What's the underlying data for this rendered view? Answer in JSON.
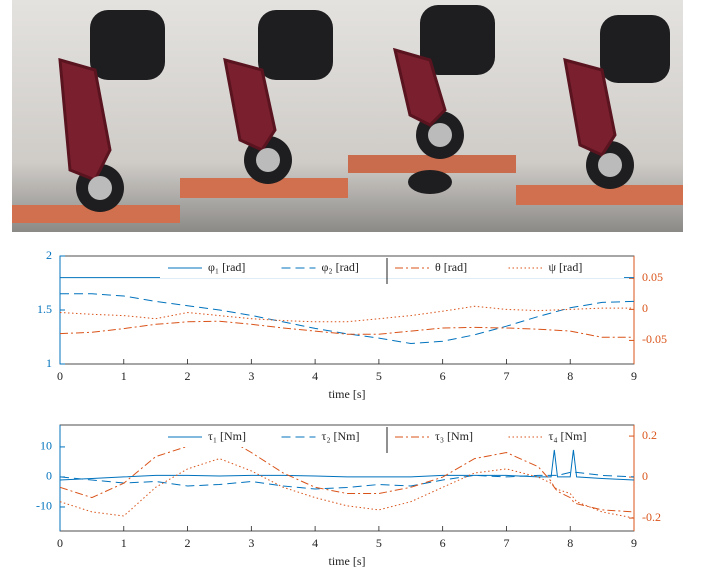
{
  "chart_data": [
    {
      "type": "line",
      "xlabel": "time [s]",
      "legend": "top",
      "x": [
        0,
        0.5,
        1,
        1.5,
        2,
        2.5,
        3,
        3.5,
        4,
        4.5,
        5,
        5.5,
        6,
        6.5,
        7,
        7.5,
        8,
        8.5,
        9
      ],
      "xlim": [
        0,
        9
      ],
      "xticks": [
        0,
        1,
        2,
        3,
        4,
        5,
        6,
        7,
        8,
        9
      ],
      "ylim": [
        1,
        2
      ],
      "yticks": [
        1,
        1.5,
        2
      ],
      "y2lim": [
        -0.088,
        0.086
      ],
      "y2ticks": [
        -0.05,
        0,
        0.05
      ],
      "series": [
        {
          "name": "φ₁ [rad]",
          "color": "#0072BD",
          "line_style": "solid",
          "values": [
            1.8,
            1.8,
            1.8,
            1.8,
            1.8,
            1.8,
            1.8,
            1.8,
            1.8,
            1.8,
            1.8,
            1.8,
            1.8,
            1.8,
            1.8,
            1.8,
            1.8,
            1.8,
            1.8
          ]
        },
        {
          "name": "φ₂ [rad]",
          "color": "#0072BD",
          "line_style": "dashed",
          "values": [
            1.65,
            1.65,
            1.63,
            1.58,
            1.54,
            1.5,
            1.45,
            1.39,
            1.33,
            1.28,
            1.24,
            1.19,
            1.21,
            1.27,
            1.35,
            1.44,
            1.52,
            1.57,
            1.58
          ]
        },
        {
          "name": "θ [rad]",
          "color": "#D95319",
          "line_style": "dashdot",
          "axis": "y2",
          "values": [
            -0.039,
            -0.037,
            -0.031,
            -0.024,
            -0.02,
            -0.019,
            -0.024,
            -0.03,
            -0.035,
            -0.04,
            -0.04,
            -0.035,
            -0.03,
            -0.029,
            -0.03,
            -0.032,
            -0.035,
            -0.045,
            -0.045
          ]
        },
        {
          "name": "ψ [rad]",
          "color": "#D95319",
          "line_style": "dotted",
          "axis": "y2",
          "values": [
            -0.005,
            -0.008,
            -0.01,
            -0.015,
            -0.005,
            -0.01,
            -0.015,
            -0.018,
            -0.02,
            -0.02,
            -0.015,
            -0.01,
            -0.003,
            0.005,
            0.0,
            -0.002,
            0.0,
            0.002,
            0.002
          ]
        }
      ]
    },
    {
      "type": "line",
      "xlabel": "time [s]",
      "legend": "top",
      "x": [
        0,
        0.5,
        1,
        1.5,
        2,
        2.5,
        3,
        3.5,
        4,
        4.5,
        5,
        5.5,
        6,
        6.5,
        7,
        7.5,
        7.7,
        7.75,
        7.8,
        8,
        8.05,
        8.1,
        8.5,
        9
      ],
      "xlim": [
        0,
        9
      ],
      "xticks": [
        0,
        1,
        2,
        3,
        4,
        5,
        6,
        7,
        8,
        9
      ],
      "ylim": [
        -18,
        17.3
      ],
      "yticks": [
        -10,
        0,
        10
      ],
      "y2lim": [
        -0.263,
        0.254
      ],
      "y2ticks": [
        -0.2,
        0,
        0.2
      ],
      "series": [
        {
          "name": "τ₁ [Nm]",
          "color": "#0072BD",
          "line_style": "solid",
          "values": [
            -1,
            -0.5,
            0,
            0.5,
            0.5,
            0.3,
            0.5,
            0.5,
            0.3,
            0,
            0,
            0,
            0.5,
            0.5,
            0.5,
            0,
            0,
            9,
            0,
            0,
            9,
            0,
            -0.5,
            -1
          ]
        },
        {
          "name": "τ₂ [Nm]",
          "color": "#0072BD",
          "line_style": "dashed",
          "values": [
            0,
            -1,
            -2,
            -1.5,
            -3,
            -2.5,
            -1.5,
            -3,
            -4,
            -3.5,
            -2.5,
            -3,
            -1,
            0.5,
            0,
            0.5,
            0.5,
            0.5,
            0.5,
            1.5,
            1.5,
            1.5,
            0.5,
            0
          ]
        },
        {
          "name": "τ₃ [Nm]",
          "color": "#D95319",
          "line_style": "dashdot",
          "axis": "y2",
          "values": [
            -0.05,
            -0.1,
            -0.03,
            0.1,
            0.15,
            0.21,
            0.12,
            0.02,
            -0.05,
            -0.08,
            -0.08,
            -0.05,
            0.0,
            0.09,
            0.12,
            0.05,
            -0.02,
            -0.05,
            -0.07,
            -0.1,
            -0.12,
            -0.13,
            -0.16,
            -0.17
          ]
        },
        {
          "name": "τ₄ [Nm]",
          "color": "#D95319",
          "line_style": "dotted",
          "axis": "y2",
          "values": [
            -0.12,
            -0.17,
            -0.19,
            -0.05,
            0.04,
            0.09,
            0.03,
            -0.05,
            -0.1,
            -0.14,
            -0.16,
            -0.12,
            -0.05,
            0.02,
            0.04,
            0.0,
            -0.03,
            -0.05,
            -0.06,
            -0.08,
            -0.1,
            -0.12,
            -0.17,
            -0.2
          ]
        }
      ]
    }
  ]
}
